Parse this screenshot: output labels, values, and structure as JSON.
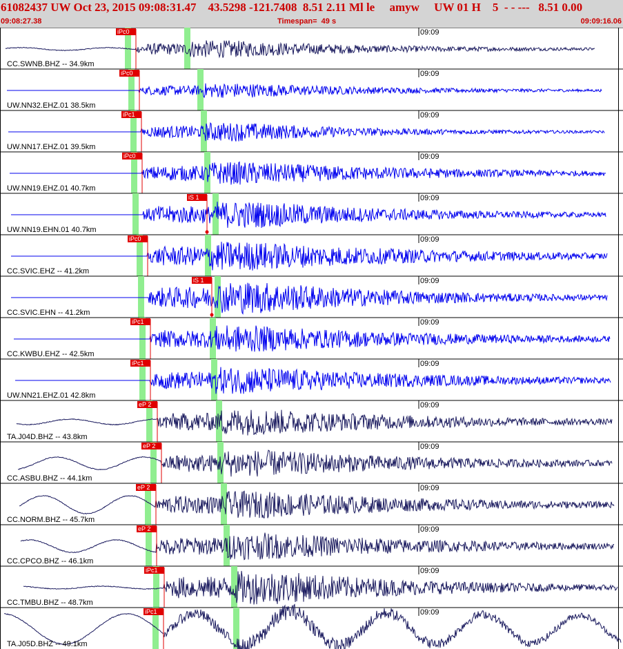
{
  "header": {
    "title": "61082437 UW Oct 23, 2015 09:08:31.47    43.5298 -121.7408  8.51 2.11 Ml le     amyw     UW 01 H    5  - - ---   8.51 0.00",
    "start_time": "09:08:27.38",
    "timespan": "Timespan=  49 s",
    "end_time": "09:09:16.06"
  },
  "minute_mark": "09:09",
  "colors": {
    "header_bg": "#d4d4d4",
    "title_text": "#cc0000",
    "trace_dark": "#1a1a5e",
    "trace_blue": "#0000ee",
    "pick_flag": "#e00000",
    "s_window": "#90ee90"
  },
  "traces": [
    {
      "label": "CC.SWNB.BHZ -- 34.9km",
      "pick": "iPc0",
      "color": "dark"
    },
    {
      "label": "UW.NN32.EHZ.01 38.5km",
      "pick": "iPc0",
      "color": "blue"
    },
    {
      "label": "UW.NN17.EHZ.01 39.5km",
      "pick": "iPc1",
      "color": "blue"
    },
    {
      "label": "UW.NN19.EHZ.01 40.7km",
      "pick": "iPc0",
      "color": "blue"
    },
    {
      "label": "UW.NN19.EHN.01 40.7km",
      "pick": "iS 1",
      "color": "blue"
    },
    {
      "label": "CC.SVIC.EHZ -- 41.2km",
      "pick": "iPc0",
      "color": "blue"
    },
    {
      "label": "CC.SVIC.EHN -- 41.2km",
      "pick": "iS 1",
      "color": "blue"
    },
    {
      "label": "CC.KWBU.EHZ -- 42.5km",
      "pick": "iPc1",
      "color": "blue"
    },
    {
      "label": "UW.NN21.EHZ.01 42.8km",
      "pick": "iPc1",
      "color": "blue"
    },
    {
      "label": "TA.J04D.BHZ -- 43.8km",
      "pick": "eP 2",
      "color": "dark"
    },
    {
      "label": "CC.ASBU.BHZ -- 44.1km",
      "pick": "eP 2",
      "color": "dark"
    },
    {
      "label": "CC.NORM.BHZ -- 45.7km",
      "pick": "eP 2",
      "color": "dark"
    },
    {
      "label": "CC.CPCO.BHZ -- 46.1km",
      "pick": "eP 2",
      "color": "dark"
    },
    {
      "label": "CC.TMBU.BHZ -- 48.7km",
      "pick": "iPc1",
      "color": "dark"
    },
    {
      "label": "TA.J05D.BHZ -- 49.1km",
      "pick": "iPc1",
      "color": "dark"
    }
  ]
}
